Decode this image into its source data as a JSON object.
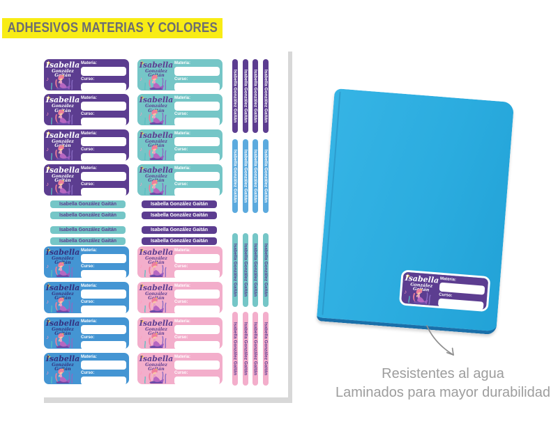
{
  "banner": {
    "label": "ADHESIVOS MATERIAS Y COLORES"
  },
  "student": {
    "first_name": "Isabella",
    "last_name": "González Gaitán",
    "full_name": "Isabella González Gaitán"
  },
  "fields": {
    "materia": "Materia:",
    "curso": "Curso:"
  },
  "colors": {
    "banner_bg": "#f8ec15",
    "banner_text": "#6d6e71",
    "purple": "#5c3d90",
    "teal": "#75c6c7",
    "blue": "#4495d3",
    "blue_light": "#5caade",
    "pink": "#f3aecb",
    "notebook_blue": "#2bacdf",
    "notebook_edge": "#1a6fa9",
    "footer_text": "#9d9d9d",
    "arrow": "#8f8f8f",
    "sheet_shadow": "#d8d8d8"
  },
  "sheet": {
    "top_label_columns": [
      {
        "id": "purple",
        "bg": "#5c3d90",
        "name_color": "#ffffff",
        "count": 4
      },
      {
        "id": "teal",
        "bg": "#75c6c7",
        "name_color": "#5c3d90",
        "count": 4
      }
    ],
    "name_strip_columns": [
      {
        "id": "teal",
        "bg": "#75c6c7",
        "text_color": "#5c3d90",
        "count": 4
      },
      {
        "id": "purple",
        "bg": "#5c3d90",
        "text_color": "#ffffff",
        "count": 4
      }
    ],
    "bottom_label_columns": [
      {
        "id": "blue",
        "bg": "#4495d3",
        "name_color": "#33317f",
        "count": 4
      },
      {
        "id": "pink",
        "bg": "#f3aecb",
        "name_color": "#5c3d90",
        "count": 4
      }
    ],
    "vertical_strip_groups": [
      {
        "id": "purple",
        "bg": "#5c3d90",
        "text_color": "#ffffff",
        "count": 4
      },
      {
        "id": "blue",
        "bg": "#5caade",
        "text_color": "#ffffff",
        "count": 4
      },
      {
        "id": "teal",
        "bg": "#75c6c7",
        "text_color": "#5c3d90",
        "count": 4
      },
      {
        "id": "pink",
        "bg": "#f3aecb",
        "text_color": "#5c3d90",
        "count": 4
      }
    ]
  },
  "notebook": {
    "label_bg": "#5c3d90",
    "label_name_color": "#ffffff"
  },
  "footer": {
    "line1": "Resistentes al agua",
    "line2": "Laminados para mayor durabilidad"
  }
}
